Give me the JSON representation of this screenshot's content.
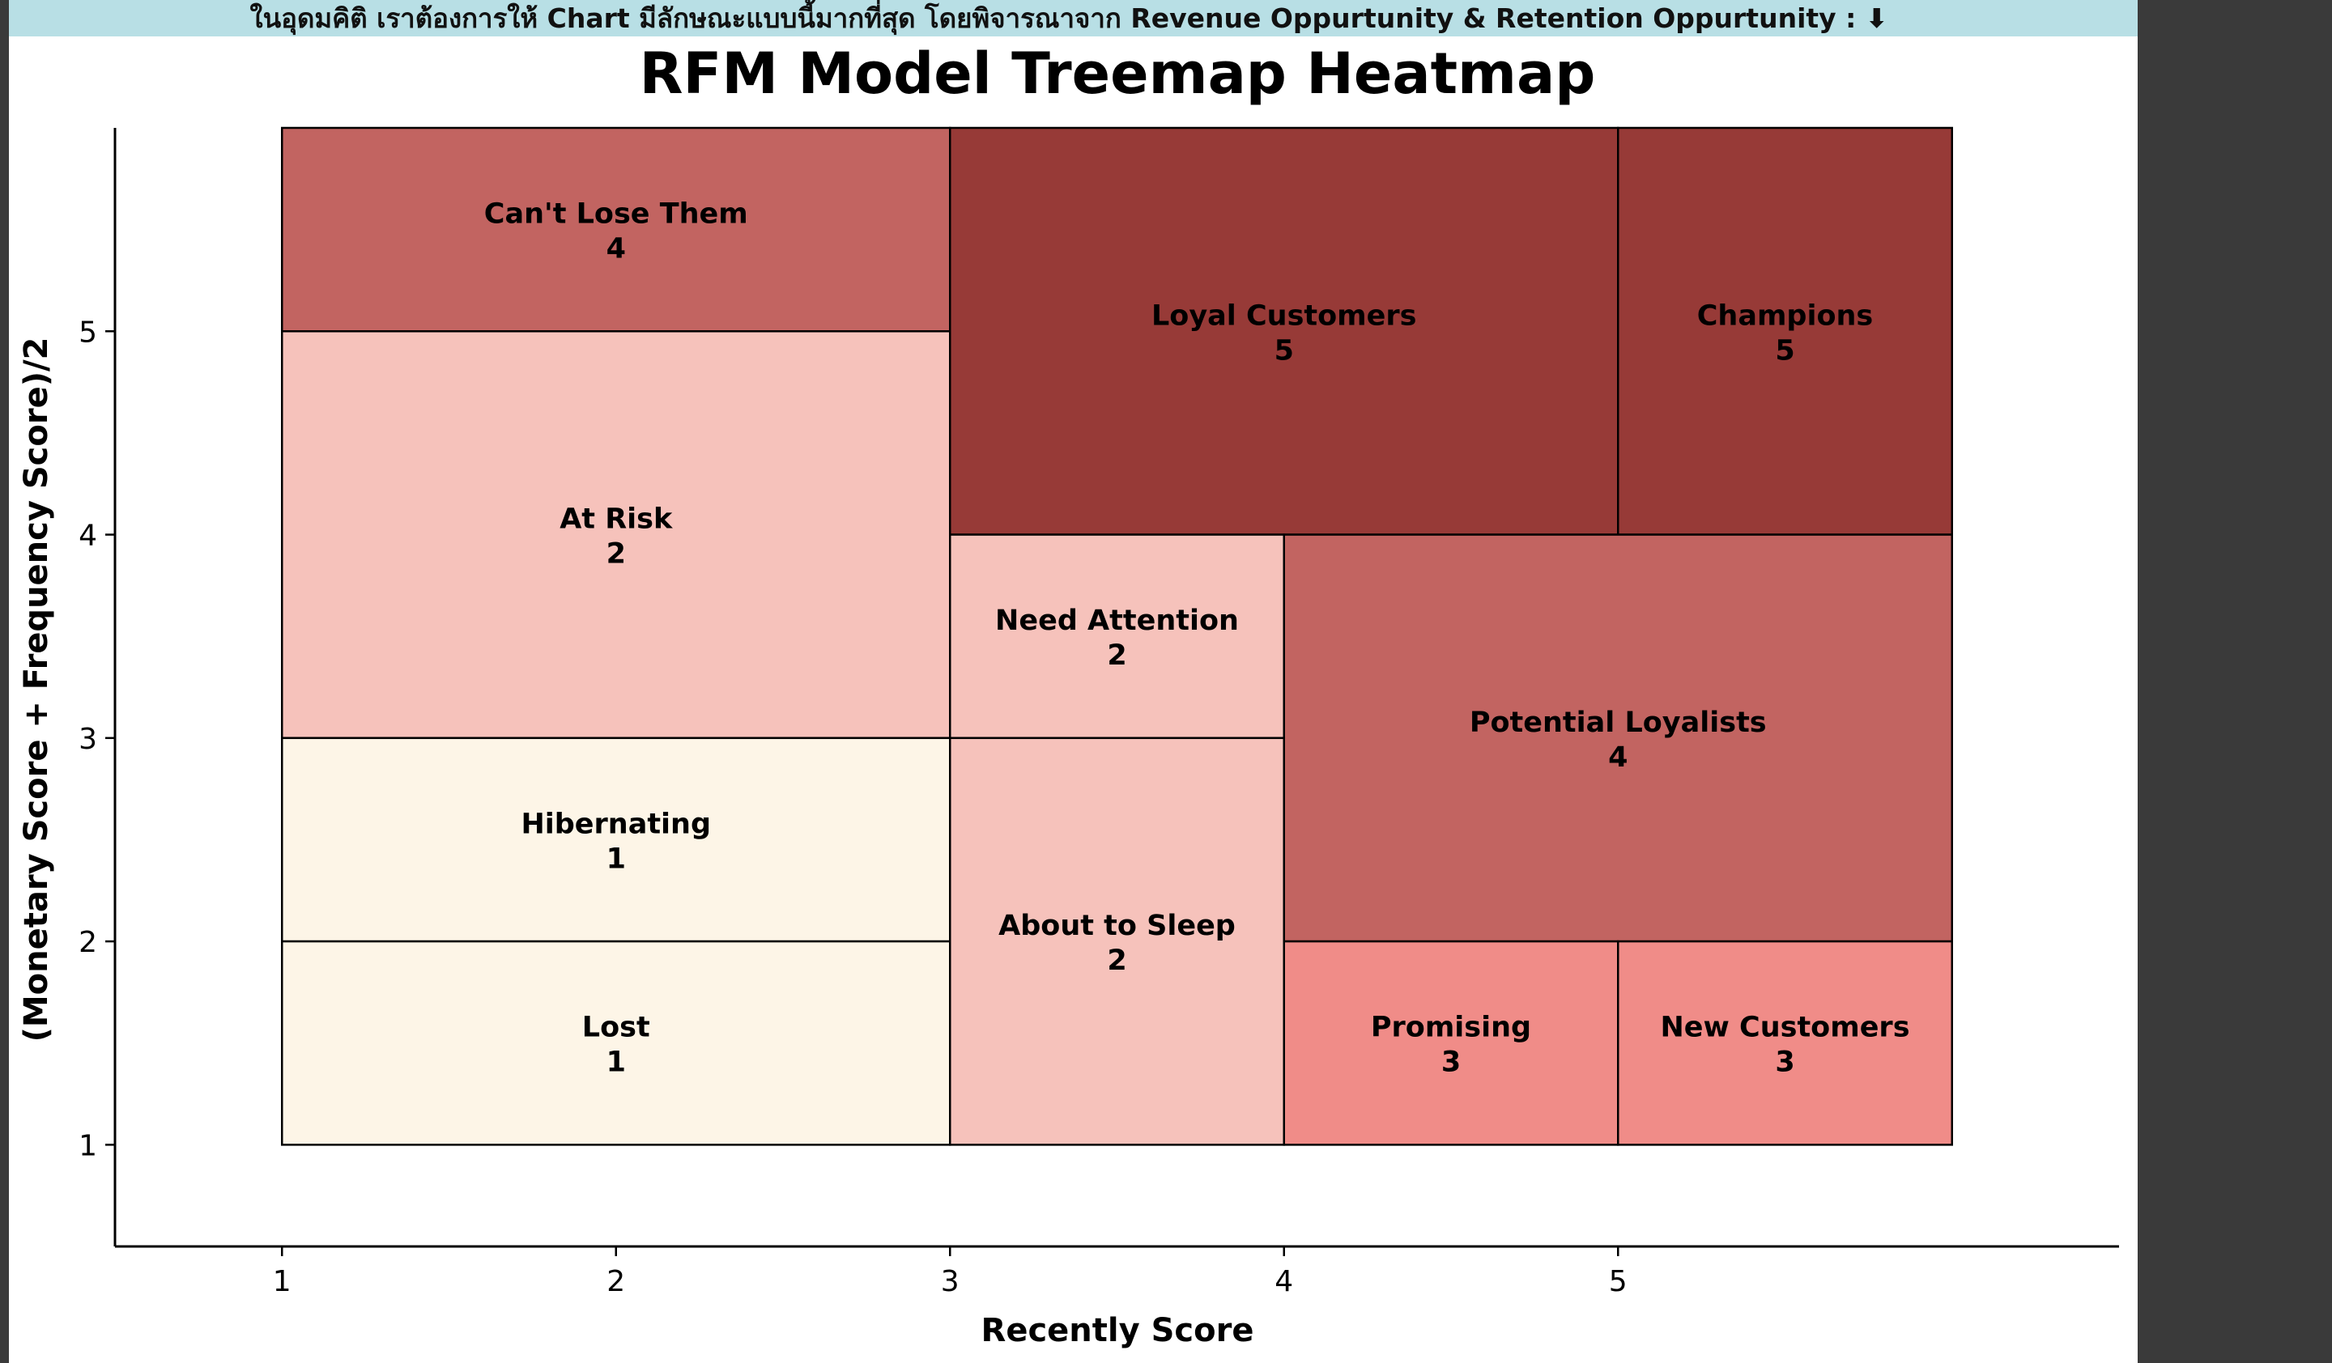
{
  "banner": {
    "text": "ในอุดมคิติ เราต้องการให้ Chart มีลักษณะแบบนี้มากที่สุด โดยพิจารณาจาก Revenue Oppurtunity & Retention Oppurtunity : ⬇"
  },
  "chart_data": {
    "type": "heatmap",
    "title": "RFM Model Treemap Heatmap",
    "xlabel": "Recently Score",
    "ylabel": "(Monetary Score + Frequency Score)/2",
    "xlim": [
      0.5,
      6.5
    ],
    "ylim": [
      0.5,
      6
    ],
    "x_ticks": [
      "1",
      "2",
      "3",
      "4",
      "5"
    ],
    "y_ticks": [
      "1",
      "2",
      "3",
      "4",
      "5"
    ],
    "grid": false,
    "legend": "none",
    "color_scale": {
      "1": "#fdf5e7",
      "2": "#f6c2bb",
      "3": "#f08c88",
      "4": "#c26461",
      "5": "#973a37"
    },
    "segments": [
      {
        "name": "Can't Lose Them",
        "value": 4,
        "x0": 1,
        "x1": 3,
        "y0": 5,
        "y1": 6
      },
      {
        "name": "Loyal Customers",
        "value": 5,
        "x0": 3,
        "x1": 5,
        "y0": 4,
        "y1": 6
      },
      {
        "name": "Champions",
        "value": 5,
        "x0": 5,
        "x1": 6,
        "y0": 4,
        "y1": 6
      },
      {
        "name": "At Risk",
        "value": 2,
        "x0": 1,
        "x1": 3,
        "y0": 3,
        "y1": 5
      },
      {
        "name": "Need Attention",
        "value": 2,
        "x0": 3,
        "x1": 4,
        "y0": 3,
        "y1": 4
      },
      {
        "name": "Potential Loyalists",
        "value": 4,
        "x0": 4,
        "x1": 6,
        "y0": 2,
        "y1": 4
      },
      {
        "name": "Hibernating",
        "value": 1,
        "x0": 1,
        "x1": 3,
        "y0": 2,
        "y1": 3
      },
      {
        "name": "About to Sleep",
        "value": 2,
        "x0": 3,
        "x1": 4,
        "y0": 1,
        "y1": 3
      },
      {
        "name": "Lost",
        "value": 1,
        "x0": 1,
        "x1": 3,
        "y0": 1,
        "y1": 2
      },
      {
        "name": "Promising",
        "value": 3,
        "x0": 4,
        "x1": 5,
        "y0": 1,
        "y1": 2
      },
      {
        "name": "New Customers",
        "value": 3,
        "x0": 5,
        "x1": 6,
        "y0": 1,
        "y1": 2
      }
    ]
  }
}
